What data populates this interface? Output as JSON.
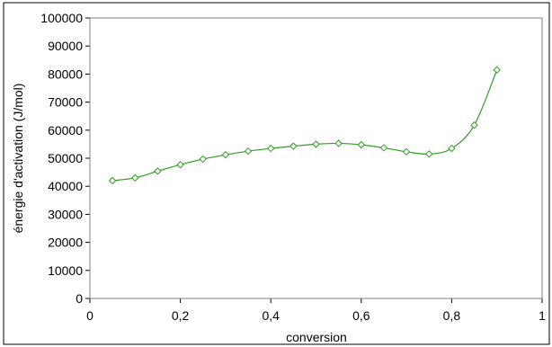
{
  "chart_data": {
    "type": "line",
    "title": "",
    "xlabel": "conversion",
    "ylabel": "énergie d'activation (J/mol)",
    "xlim": [
      0,
      1
    ],
    "ylim": [
      0,
      100000
    ],
    "x_ticks": [
      0,
      0.2,
      0.4,
      0.6,
      0.8,
      1
    ],
    "x_tick_labels": [
      "0",
      "0,2",
      "0,4",
      "0,6",
      "0,8",
      "1"
    ],
    "y_ticks": [
      0,
      10000,
      20000,
      30000,
      40000,
      50000,
      60000,
      70000,
      80000,
      90000,
      100000
    ],
    "y_tick_labels": [
      "0",
      "10000",
      "20000",
      "30000",
      "40000",
      "50000",
      "60000",
      "70000",
      "80000",
      "90000",
      "100000"
    ],
    "grid": false,
    "legend": "none",
    "series": [
      {
        "marker": "diamond",
        "color": "#2e9e1f",
        "x": [
          0.05,
          0.1,
          0.15,
          0.2,
          0.25,
          0.3,
          0.35,
          0.4,
          0.45,
          0.5,
          0.55,
          0.6,
          0.65,
          0.7,
          0.75,
          0.8,
          0.85,
          0.9
        ],
        "y": [
          42000,
          43000,
          45400,
          47700,
          49700,
          51200,
          52500,
          53500,
          54300,
          55000,
          55300,
          54800,
          53700,
          52300,
          51500,
          53500,
          61800,
          81500
        ]
      }
    ]
  }
}
